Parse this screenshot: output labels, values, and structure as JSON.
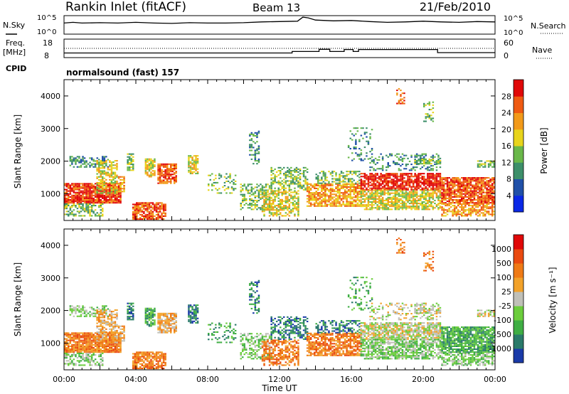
{
  "header": {
    "station": "Rankin Inlet (fitACF)",
    "beam": "Beam 13",
    "date": "21/Feb/2010"
  },
  "nsky_panel": {
    "left_label": "N.Sky",
    "right_label": "N.Search",
    "left_ticks": [
      "10^5",
      "10^0"
    ],
    "right_ticks": [
      "10^5",
      "10^0"
    ]
  },
  "freq_panel": {
    "left_label_1": "Freq.",
    "left_label_2": "[MHz]",
    "right_label": "Nave",
    "left_ticks": [
      "18",
      "8"
    ],
    "right_ticks": [
      "60",
      "0"
    ]
  },
  "cpid": {
    "label": "CPID",
    "value": "normalsound (fast) 157"
  },
  "colors": {
    "power_scale": [
      "#0a28e6",
      "#2050a8",
      "#3d8f6a",
      "#6ab84a",
      "#e8d41c",
      "#f29a1a",
      "#ef5a12",
      "#e00808"
    ],
    "velocity_scale": [
      "#1a3aa8",
      "#2a7a6a",
      "#3fae44",
      "#6ccd3c",
      "#c0c0b8",
      "#f2a22a",
      "#ef7a16",
      "#ea4a10",
      "#e00808"
    ]
  },
  "chart_data": [
    {
      "type": "line",
      "title": "N.Sky / N.Search",
      "xlim": [
        0,
        24
      ],
      "series": [
        {
          "name": "N.Sky",
          "x": [
            0,
            0.5,
            1,
            2,
            3,
            4,
            5,
            6,
            7,
            8,
            9,
            10,
            11,
            12,
            13,
            13.3,
            13.6,
            14,
            15,
            16,
            17,
            18,
            19,
            20,
            21,
            22,
            23,
            24
          ],
          "values": [
            3.0,
            3.2,
            3.0,
            3.1,
            3.0,
            3.2,
            3.0,
            2.9,
            3.1,
            3.0,
            3.0,
            3.1,
            3.3,
            3.4,
            3.5,
            4.6,
            4.4,
            3.8,
            3.6,
            3.7,
            3.4,
            3.2,
            3.3,
            3.5,
            3.3,
            3.2,
            3.4,
            3.3
          ]
        }
      ]
    },
    {
      "type": "line",
      "title": "Freq / Nave",
      "xlim": [
        0,
        24
      ],
      "series": [
        {
          "name": "Freq",
          "x": [
            0,
            12.7,
            12.7,
            14.2,
            14.2,
            14.8,
            14.8,
            15.6,
            15.6,
            16.1,
            16.1,
            16.4,
            16.4,
            20.8,
            20.8,
            24
          ],
          "values": [
            10.5,
            10.5,
            11.3,
            11.3,
            12.5,
            12.5,
            11.3,
            11.3,
            12.4,
            12.4,
            11.3,
            11.3,
            12.4,
            12.4,
            10.7,
            10.7
          ]
        },
        {
          "name": "Nave",
          "x": [
            0,
            24
          ],
          "values": [
            35,
            35
          ]
        }
      ]
    },
    {
      "type": "heatmap",
      "title": "Power",
      "xlabel": "",
      "ylabel": "Slant Range [km]",
      "xlim": [
        0,
        24
      ],
      "ylim": [
        180,
        4500
      ],
      "x_ticks": [
        "00:00",
        "04:00",
        "08:00",
        "12:00",
        "16:00",
        "20:00",
        "00:00"
      ],
      "y_ticks": [
        1000,
        2000,
        3000,
        4000
      ],
      "colorbar_label": "Power [dB]",
      "colorbar_ticks": [
        "28",
        "24",
        "20",
        "16",
        "12",
        "8",
        "4"
      ]
    },
    {
      "type": "heatmap",
      "title": "Velocity",
      "xlabel": "Time UT",
      "ylabel": "Slant Range [km]",
      "xlim": [
        0,
        24
      ],
      "ylim": [
        180,
        4500
      ],
      "x_ticks": [
        "00:00",
        "04:00",
        "08:00",
        "12:00",
        "16:00",
        "20:00",
        "00:00"
      ],
      "y_ticks": [
        1000,
        2000,
        3000,
        4000
      ],
      "colorbar_label": "Velocity [m s⁻¹]",
      "colorbar_ticks": [
        "1000",
        "500",
        "100",
        "25",
        "-25",
        "-100",
        "-500",
        "-1000"
      ]
    }
  ]
}
